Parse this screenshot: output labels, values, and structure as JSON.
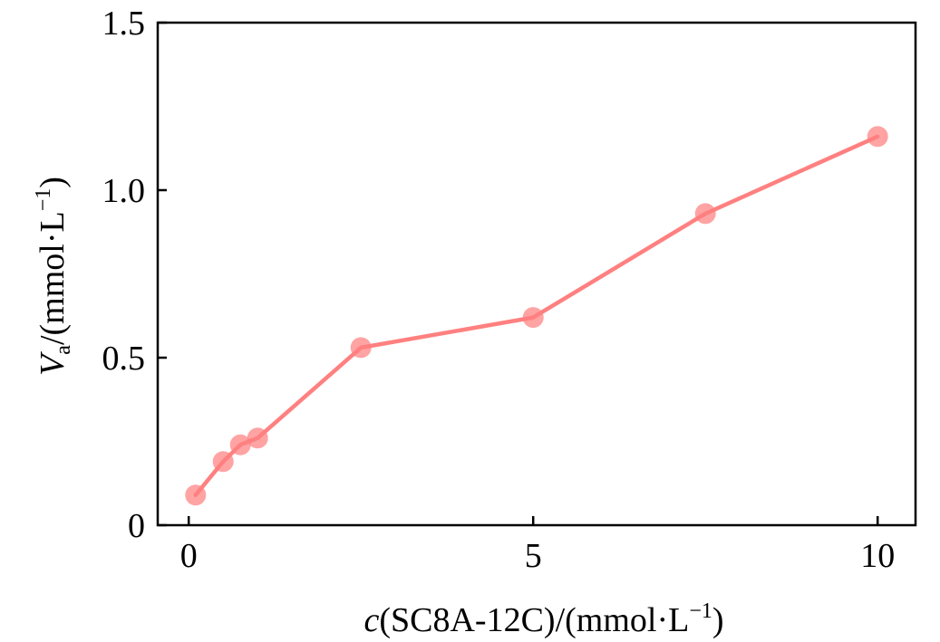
{
  "chart_data": {
    "type": "line",
    "title": "",
    "xlabel": {
      "var": "c",
      "text": "(SC8A-12C)/(mmol·L",
      "sup": "−1",
      "close": ")"
    },
    "ylabel": {
      "var": "V",
      "sub": "a",
      "text": "/(mmol·L",
      "sup": "−1",
      "close": ")"
    },
    "xlim": [
      -0.45,
      10.55
    ],
    "ylim": [
      0,
      1.5
    ],
    "xticks": [
      0,
      5,
      10
    ],
    "xtick_labels": [
      "0",
      "5",
      "10"
    ],
    "yticks": [
      0,
      0.5,
      1.0,
      1.5
    ],
    "ytick_labels": [
      "0",
      "0.5",
      "1.0",
      "1.5"
    ],
    "grid": false,
    "series": [
      {
        "name": "Va",
        "color": "#ff8080",
        "x": [
          0.1,
          0.5,
          0.75,
          1.0,
          2.5,
          5.0,
          7.5,
          10.0
        ],
        "y": [
          0.09,
          0.19,
          0.24,
          0.26,
          0.53,
          0.62,
          0.93,
          1.16
        ]
      }
    ]
  }
}
